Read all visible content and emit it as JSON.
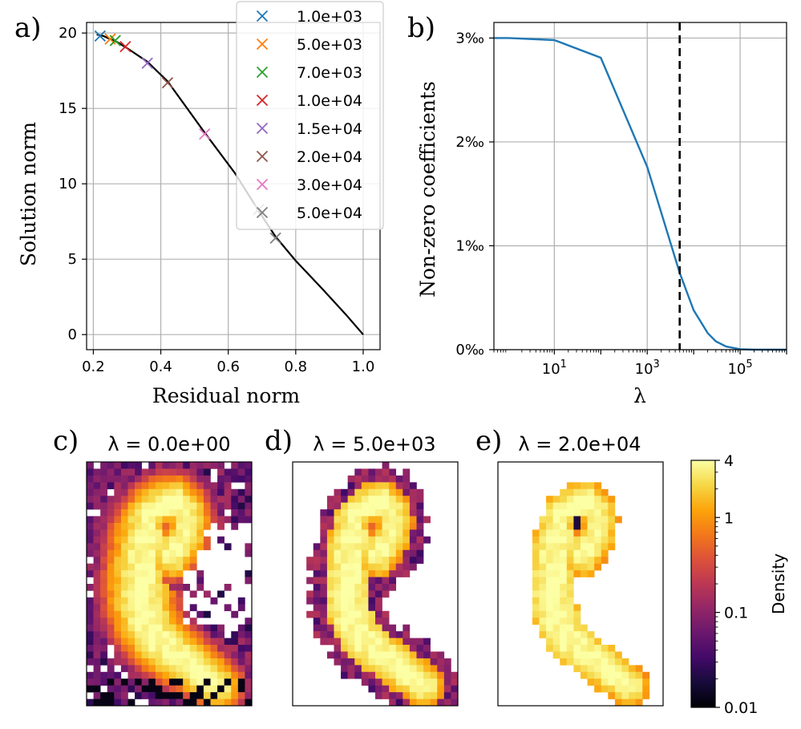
{
  "panel_labels": {
    "a": "a)",
    "b": "b)",
    "c": "c)",
    "d": "d)",
    "e": "e)"
  },
  "chart_data": [
    {
      "type": "line",
      "panel": "a",
      "xlabel": "Residual norm",
      "ylabel": "Solution norm",
      "xlim": [
        0.18,
        1.05
      ],
      "ylim": [
        -1,
        20.7
      ],
      "xticks": [
        0.2,
        0.4,
        0.6,
        0.8,
        1.0
      ],
      "xtick_labels": [
        "0.2",
        "0.4",
        "0.6",
        "0.8",
        "1.0"
      ],
      "yticks": [
        0,
        5,
        10,
        15,
        20
      ],
      "ytick_labels": [
        "0",
        "5",
        "10",
        "15",
        "20"
      ],
      "grid": true,
      "legend_position": "top-right",
      "curve": {
        "color": "#000000",
        "x": [
          0.21,
          0.23,
          0.25,
          0.27,
          0.3,
          0.36,
          0.42,
          0.53,
          0.62,
          0.69,
          0.74,
          0.8,
          0.88,
          0.95,
          1.0
        ],
        "y": [
          19.9,
          19.8,
          19.6,
          19.4,
          19.0,
          18.1,
          16.8,
          13.4,
          10.7,
          8.2,
          6.5,
          4.9,
          3.0,
          1.3,
          0.0
        ]
      },
      "markers": [
        {
          "name": "1.0e+03",
          "color": "#1f77b4",
          "x": 0.22,
          "y": 19.8
        },
        {
          "name": "5.0e+03",
          "color": "#ff7f0e",
          "x": 0.25,
          "y": 19.6
        },
        {
          "name": "7.0e+03",
          "color": "#2ca02c",
          "x": 0.265,
          "y": 19.5
        },
        {
          "name": "1.0e+04",
          "color": "#d62728",
          "x": 0.295,
          "y": 19.1
        },
        {
          "name": "1.5e+04",
          "color": "#9467bd",
          "x": 0.36,
          "y": 18.0
        },
        {
          "name": "2.0e+04",
          "color": "#8c564b",
          "x": 0.42,
          "y": 16.7
        },
        {
          "name": "3.0e+04",
          "color": "#e377c2",
          "x": 0.53,
          "y": 13.3
        },
        {
          "name": "5.0e+04",
          "color": "#7f7f7f",
          "x": 0.69,
          "y": 8.3
        },
        {
          "name": "",
          "color": "#7f7f7f",
          "x": 0.74,
          "y": 6.4
        }
      ]
    },
    {
      "type": "line",
      "panel": "b",
      "xlabel": "λ",
      "ylabel": "Non-zero coefficients",
      "xscale": "log",
      "xlim": [
        0.5,
        1000000
      ],
      "ylim": [
        0,
        3.15
      ],
      "xticks": [
        10,
        1000,
        100000
      ],
      "xtick_base": "10",
      "xtick_exponents": [
        "1",
        "3",
        "5"
      ],
      "yticks": [
        0,
        1,
        2,
        3
      ],
      "ytick_labels": [
        "0‰",
        "1‰",
        "2‰",
        "3‰"
      ],
      "grid": true,
      "vline": {
        "x": 5000,
        "color": "#000000",
        "style": "dashed"
      },
      "series": [
        {
          "color": "#1f77b4",
          "x": [
            0.5,
            1,
            10,
            100,
            1000,
            5000,
            10000,
            20000,
            30000,
            50000,
            100000,
            200000,
            1000000
          ],
          "y": [
            3.0,
            3.0,
            2.98,
            2.81,
            1.76,
            0.74,
            0.38,
            0.16,
            0.08,
            0.03,
            0.005,
            0.0,
            0.0
          ]
        }
      ]
    },
    {
      "type": "heatmap",
      "panel": "c",
      "title": "λ = 0.0e+00",
      "lambda": 0
    },
    {
      "type": "heatmap",
      "panel": "d",
      "title": "λ = 5.0e+03",
      "lambda": 5000
    },
    {
      "type": "heatmap",
      "panel": "e",
      "title": "λ = 2.0e+04",
      "lambda": 20000
    },
    {
      "type": "colorbar",
      "label": "Density",
      "scale": "log",
      "range": [
        0.01,
        4
      ],
      "ticks": [
        4,
        1,
        0.1,
        0.01
      ],
      "tick_labels": [
        "4",
        "1",
        "0.1",
        "0.01"
      ],
      "colormap": "inferno"
    }
  ]
}
